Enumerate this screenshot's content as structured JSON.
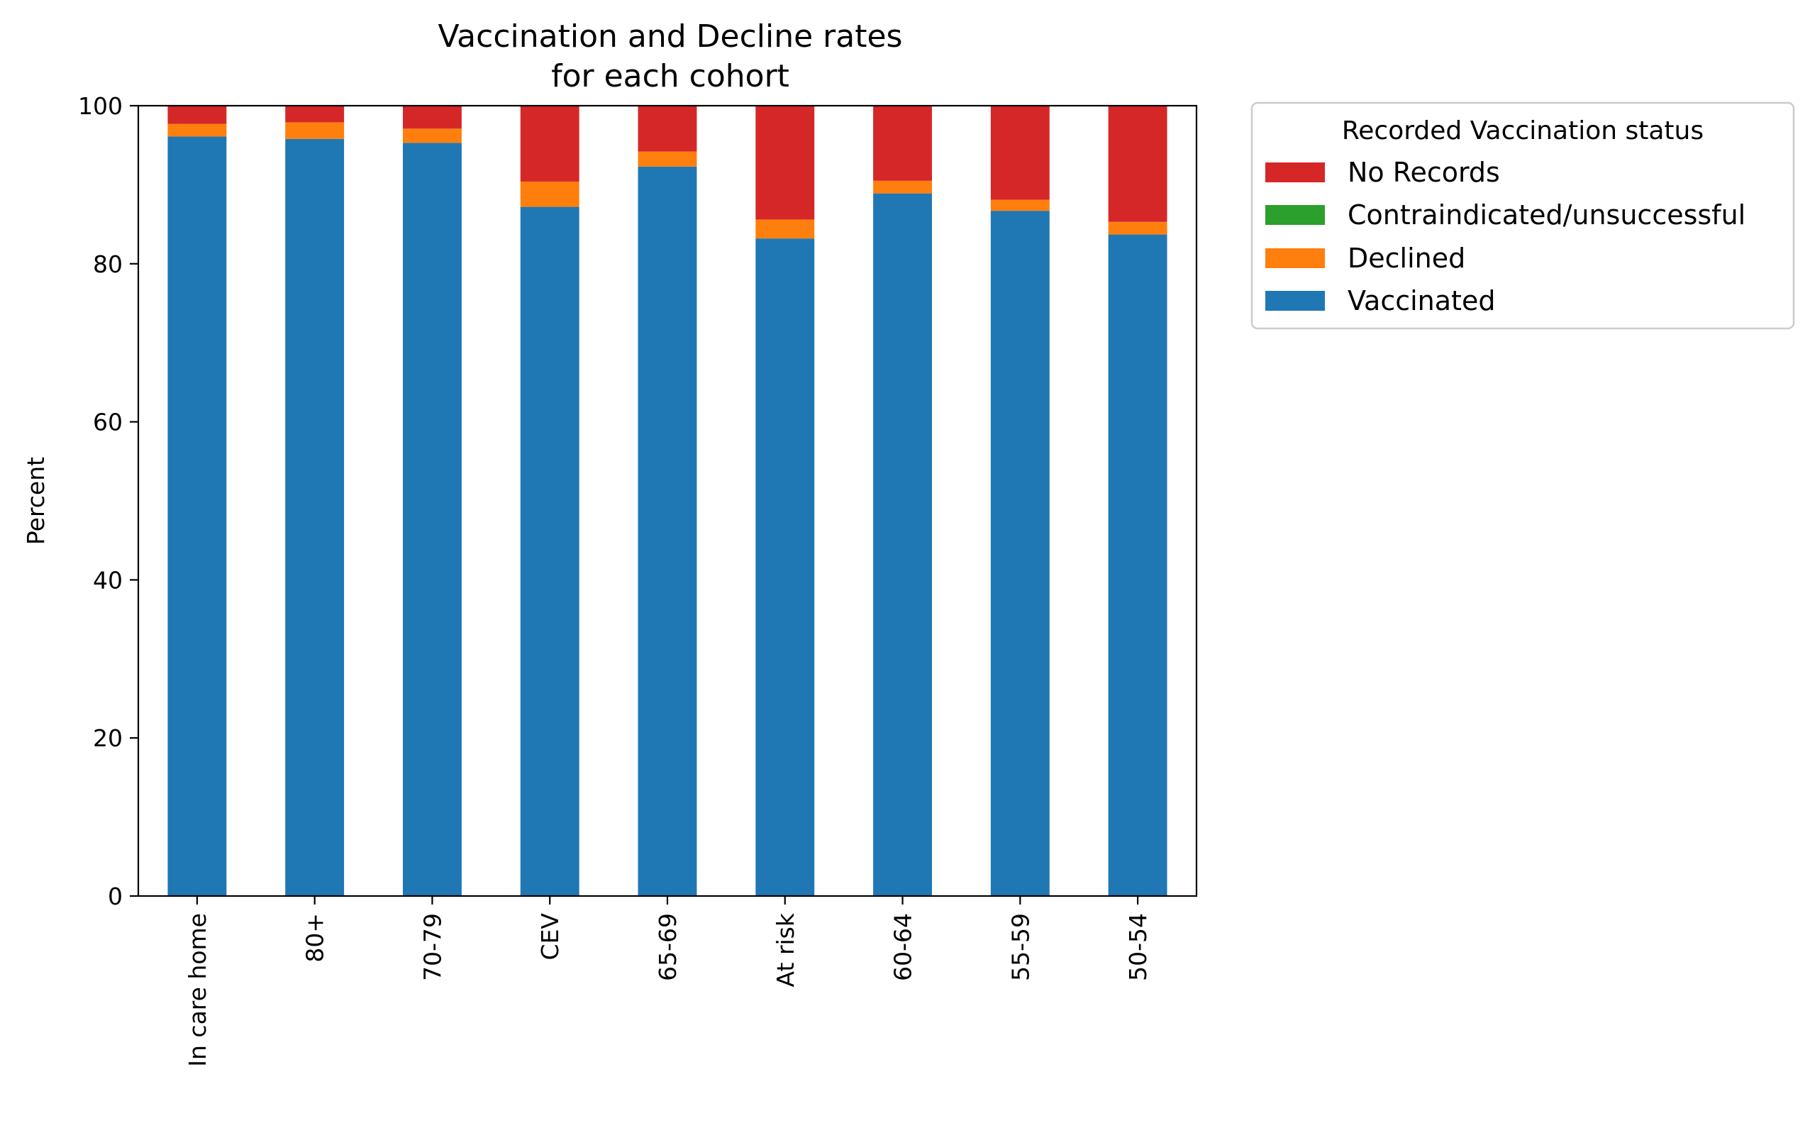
{
  "chart_data": {
    "type": "bar",
    "stacked": true,
    "title_lines": [
      "Vaccination and Decline rates",
      "for each cohort"
    ],
    "xlabel": "",
    "ylabel": "Percent",
    "ylim": [
      0,
      100
    ],
    "yticks": [
      "0",
      "20",
      "40",
      "60",
      "80",
      "100"
    ],
    "categories": [
      "In care home",
      "80+",
      "70-79",
      "CEV",
      "65-69",
      "At risk",
      "60-64",
      "55-59",
      "50-54"
    ],
    "series": [
      {
        "name": "Vaccinated",
        "color": "#1f77b4",
        "values": [
          96.1,
          95.8,
          95.3,
          87.2,
          92.3,
          83.2,
          88.9,
          86.7,
          83.7
        ]
      },
      {
        "name": "Declined",
        "color": "#ff7f0e",
        "values": [
          1.6,
          2.1,
          1.8,
          3.2,
          1.9,
          2.4,
          1.6,
          1.4,
          1.6
        ]
      },
      {
        "name": "Contraindicated/unsuccessful",
        "color": "#2ca02c",
        "values": [
          0.0,
          0.0,
          0.0,
          0.0,
          0.0,
          0.0,
          0.0,
          0.0,
          0.0
        ]
      },
      {
        "name": "No Records",
        "color": "#d62728",
        "values": [
          2.3,
          2.1,
          2.9,
          9.6,
          5.8,
          14.4,
          9.5,
          11.9,
          14.7
        ]
      }
    ],
    "grid": false,
    "legend": {
      "title": "Recorded Vaccination status",
      "placement": "outside-top-right",
      "order": [
        "No Records",
        "Contraindicated/unsuccessful",
        "Declined",
        "Vaccinated"
      ]
    }
  }
}
